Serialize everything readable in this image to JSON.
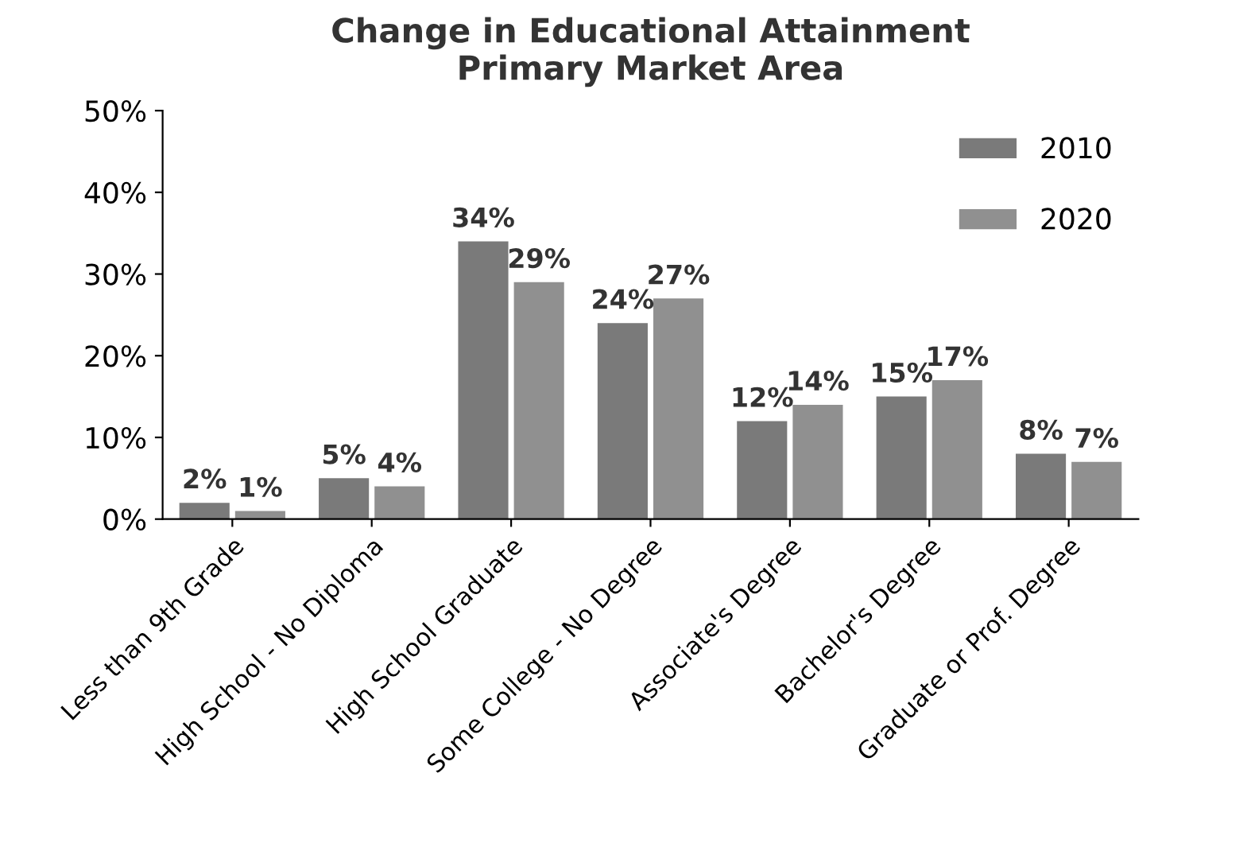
{
  "chart_data": {
    "type": "bar",
    "title": "Change in Educational Attainment\nPrimary Market Area",
    "categories": [
      "Less than 9th Grade",
      "High School - No Diploma",
      "High School Graduate",
      "Some College - No Degree",
      "Associate's Degree",
      "Bachelor's Degree",
      "Graduate or Prof. Degree"
    ],
    "series": [
      {
        "name": "2010",
        "color": "#7a7a7a",
        "values": [
          2,
          5,
          34,
          24,
          12,
          15,
          8
        ],
        "value_labels": [
          "2%",
          "5%",
          "34%",
          "24%",
          "12%",
          "15%",
          "8%"
        ]
      },
      {
        "name": "2020",
        "color": "#909090",
        "values": [
          1,
          4,
          29,
          27,
          14,
          17,
          7
        ],
        "value_labels": [
          "1%",
          "4%",
          "29%",
          "27%",
          "14%",
          "17%",
          "7%"
        ]
      }
    ],
    "ylim": [
      0,
      50
    ],
    "yticks": [
      {
        "value": 0,
        "label": "0%"
      },
      {
        "value": 10,
        "label": "10%"
      },
      {
        "value": 20,
        "label": "20%"
      },
      {
        "value": 30,
        "label": "30%"
      },
      {
        "value": 40,
        "label": "40%"
      },
      {
        "value": 50,
        "label": "50%"
      }
    ],
    "legend": "top right",
    "grid": false
  }
}
